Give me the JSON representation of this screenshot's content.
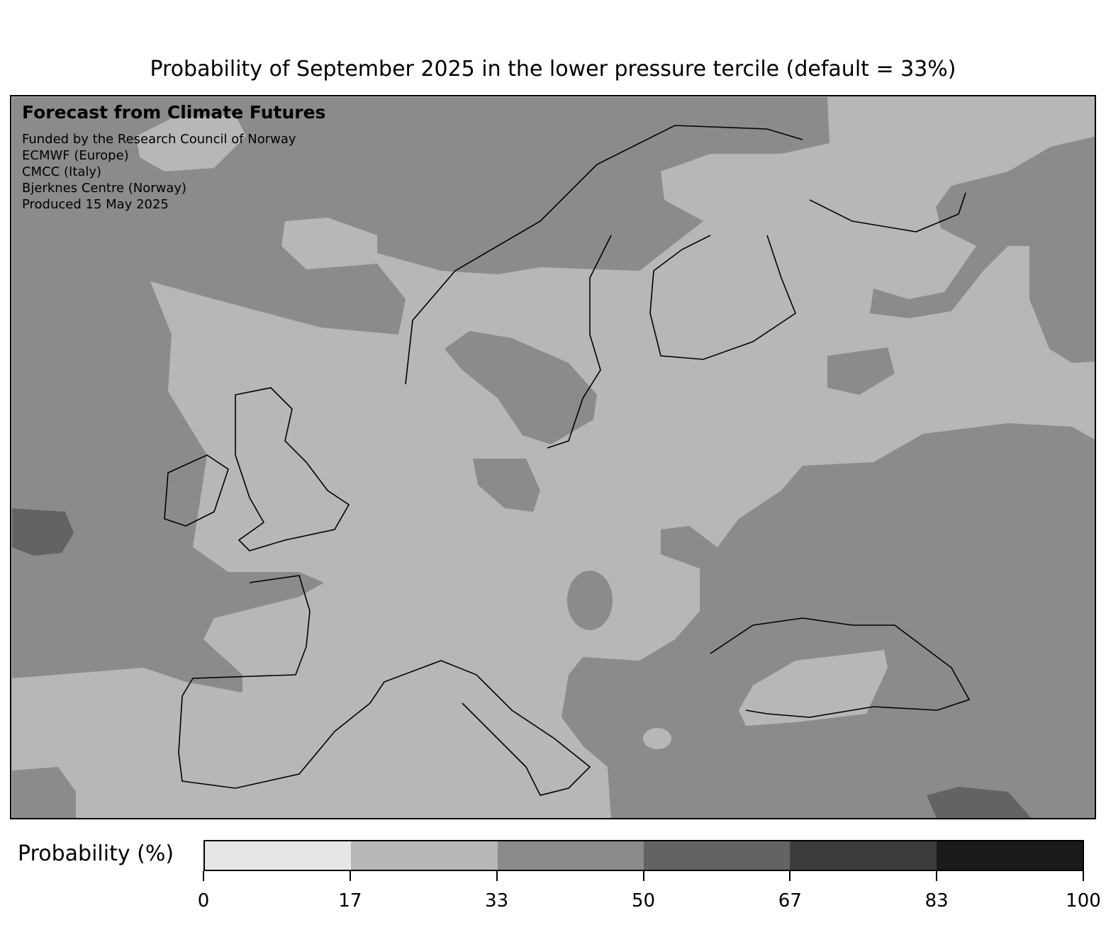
{
  "title": "Probability of September 2025 in the lower pressure tercile (default = 33%)",
  "credits": {
    "heading": "Forecast from Climate Futures",
    "lines": [
      "Funded by the Research Council of Norway",
      "ECMWF (Europe)",
      "CMCC (Italy)",
      "Bjerknes Centre (Norway)",
      "Produced 15 May 2025"
    ]
  },
  "colorbar": {
    "label": "Probability (%)",
    "ticks": [
      "0",
      "17",
      "33",
      "50",
      "67",
      "83",
      "100"
    ],
    "colors": [
      "#e6e6e6",
      "#b7b7b7",
      "#8b8b8b",
      "#636363",
      "#3c3c3c",
      "#1a1a1a"
    ]
  }
}
